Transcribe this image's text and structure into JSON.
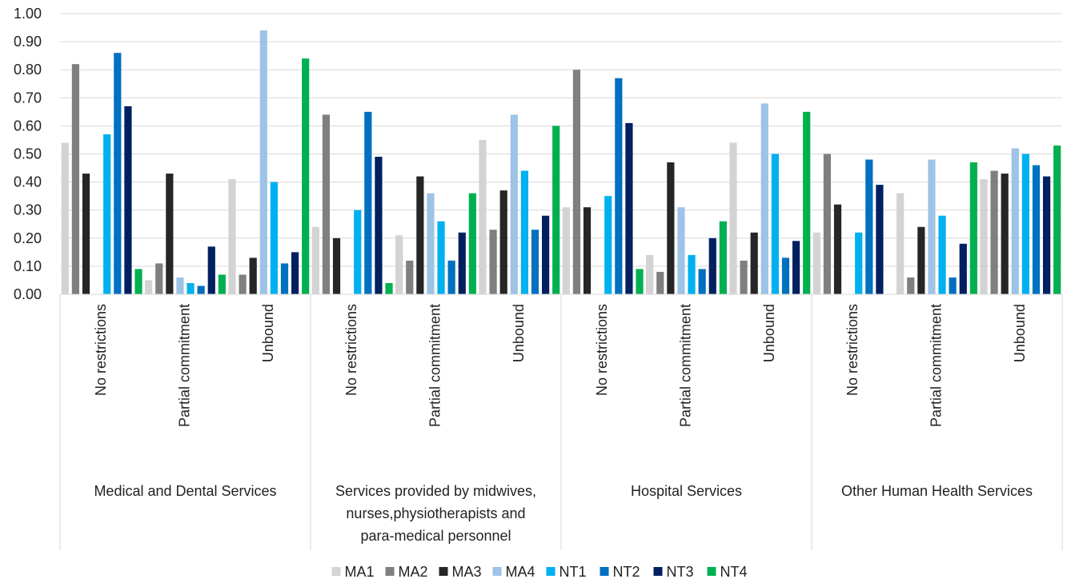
{
  "chart_data": {
    "type": "bar",
    "title": "",
    "xlabel": "",
    "ylabel": "",
    "ylim": [
      0,
      1.0
    ],
    "yticks": [
      "0.00",
      "0.10",
      "0.20",
      "0.30",
      "0.40",
      "0.50",
      "0.60",
      "0.70",
      "0.80",
      "0.90",
      "1.00"
    ],
    "grid": true,
    "legend_position": "bottom",
    "groups": [
      {
        "label_lines": [
          "Medical and Dental Services"
        ],
        "categories": [
          "No restrictions",
          "Partial commitment",
          "Unbound"
        ]
      },
      {
        "label_lines": [
          "Services provided by midwives,",
          "nurses,physiotherapists and",
          "para-medical personnel"
        ],
        "categories": [
          "No restrictions",
          "Partial commitment",
          "Unbound"
        ]
      },
      {
        "label_lines": [
          "Hospital Services"
        ],
        "categories": [
          "No restrictions",
          "Partial commitment",
          "Unbound"
        ]
      },
      {
        "label_lines": [
          "Other Human Health Services"
        ],
        "categories": [
          "No restrictions",
          "Partial commitment",
          "Unbound"
        ]
      }
    ],
    "series": [
      {
        "name": "MA1",
        "color": "#d3d3d3",
        "values": [
          0.54,
          0.05,
          0.41,
          0.24,
          0.21,
          0.55,
          0.31,
          0.14,
          0.54,
          0.22,
          0.36,
          0.41
        ]
      },
      {
        "name": "MA2",
        "color": "#7f7f7f",
        "values": [
          0.82,
          0.11,
          0.07,
          0.64,
          0.12,
          0.23,
          0.8,
          0.08,
          0.12,
          0.5,
          0.06,
          0.44
        ]
      },
      {
        "name": "MA3",
        "color": "#262626",
        "values": [
          0.43,
          0.43,
          0.13,
          0.2,
          0.42,
          0.37,
          0.31,
          0.47,
          0.22,
          0.32,
          0.24,
          0.43
        ]
      },
      {
        "name": "MA4",
        "color": "#9dc3e6",
        "values": [
          0.0,
          0.06,
          0.94,
          0.0,
          0.36,
          0.64,
          0.0,
          0.31,
          0.68,
          0.0,
          0.48,
          0.52
        ]
      },
      {
        "name": "NT1",
        "color": "#00b0f0",
        "values": [
          0.57,
          0.04,
          0.4,
          0.3,
          0.26,
          0.44,
          0.35,
          0.14,
          0.5,
          0.22,
          0.28,
          0.5
        ]
      },
      {
        "name": "NT2",
        "color": "#0070c0",
        "values": [
          0.86,
          0.03,
          0.11,
          0.65,
          0.12,
          0.23,
          0.77,
          0.09,
          0.13,
          0.48,
          0.06,
          0.46
        ]
      },
      {
        "name": "NT3",
        "color": "#002060",
        "values": [
          0.67,
          0.17,
          0.15,
          0.49,
          0.22,
          0.28,
          0.61,
          0.2,
          0.19,
          0.39,
          0.18,
          0.42
        ]
      },
      {
        "name": "NT4",
        "color": "#00b050",
        "values": [
          0.09,
          0.07,
          0.84,
          0.04,
          0.36,
          0.6,
          0.09,
          0.26,
          0.65,
          0.0,
          0.47,
          0.53
        ]
      }
    ]
  }
}
